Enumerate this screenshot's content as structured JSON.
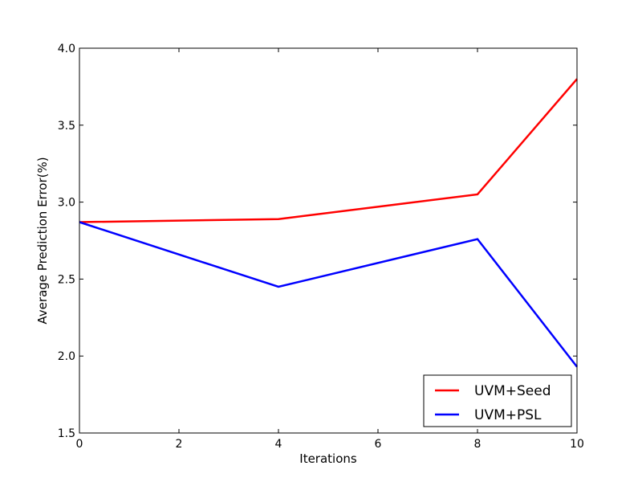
{
  "chart_data": {
    "type": "line",
    "title": "",
    "xlabel": "Iterations",
    "ylabel": "Average Prediction Error(%)",
    "xlim": [
      0,
      10
    ],
    "ylim": [
      1.5,
      4.0
    ],
    "x_ticks": [
      0,
      2,
      4,
      6,
      8,
      10
    ],
    "x_tick_labels": [
      "0",
      "2",
      "4",
      "6",
      "8",
      "10"
    ],
    "y_ticks": [
      1.5,
      2.0,
      2.5,
      3.0,
      3.5,
      4.0
    ],
    "y_tick_labels": [
      "1.5",
      "2.0",
      "2.5",
      "3.0",
      "3.5",
      "4.0"
    ],
    "grid": false,
    "legend_position": "lower-right",
    "x": [
      0,
      4,
      8,
      10
    ],
    "series": [
      {
        "name": "UVM+Seed",
        "color": "#ff0000",
        "values": [
          2.87,
          2.89,
          3.05,
          3.8
        ]
      },
      {
        "name": "UVM+PSL",
        "color": "#0000ff",
        "values": [
          2.87,
          2.45,
          2.76,
          1.93
        ]
      }
    ]
  }
}
